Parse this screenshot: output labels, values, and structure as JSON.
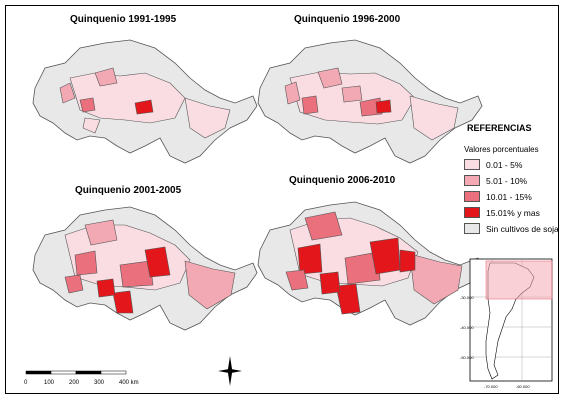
{
  "maps": [
    {
      "title": "Quinquenio 1991-1995"
    },
    {
      "title": "Quinquenio 1996-2000"
    },
    {
      "title": "Quinquenio 2001-2005"
    },
    {
      "title": "Quinquenio 2006-2010"
    }
  ],
  "legend": {
    "title": "REFERENCIAS",
    "subtitle": "Valores porcentuales",
    "items": [
      {
        "label": "0.01 - 5%",
        "color": "#f9dde2"
      },
      {
        "label": "5.01 - 10%",
        "color": "#f2a9b3"
      },
      {
        "label": "10.01 - 15%",
        "color": "#e9707c"
      },
      {
        "label": "15.01% y mas",
        "color": "#e3161b"
      },
      {
        "label": "Sin cultivos de soja",
        "color": "#e8e8e8"
      }
    ]
  },
  "scale": {
    "ticks": [
      "0",
      "100",
      "200",
      "300",
      "400 km"
    ]
  },
  "inset": {
    "lat_labels": [
      "-30.000",
      "-40.000",
      "-50.000"
    ],
    "lon_labels": [
      "-70.000",
      "-60.000"
    ]
  },
  "colors": {
    "none": "#e8e8e8",
    "low": "#f9dde2",
    "mid": "#f2a9b3",
    "high": "#e9707c",
    "top": "#e3161b",
    "outline": "#555555"
  }
}
